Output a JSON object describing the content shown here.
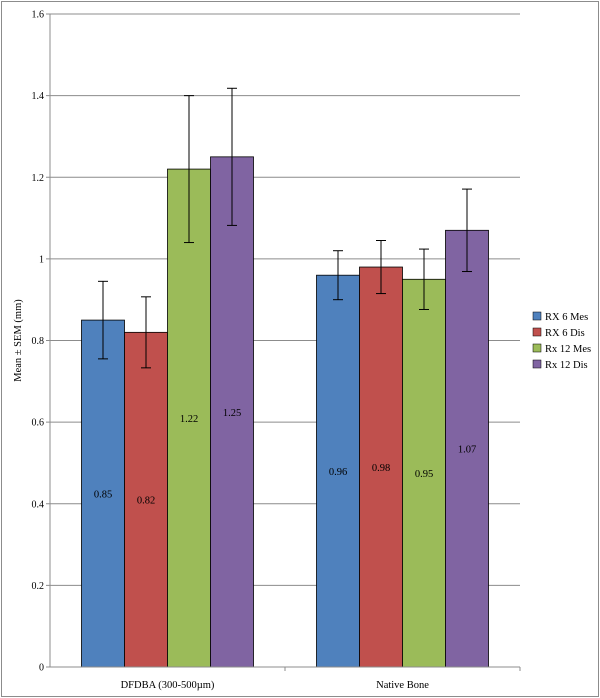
{
  "chart_data": {
    "type": "bar",
    "title": "",
    "xlabel": "",
    "ylabel": "Mean ± SEM (mm)",
    "ylim": [
      0,
      1.6
    ],
    "yticks": [
      0,
      0.2,
      0.4,
      0.6,
      0.8,
      1,
      1.2,
      1.4,
      1.6
    ],
    "grid": true,
    "legend_position": "right",
    "categories": [
      "DFDBA (300-500µm)",
      "Native Bone"
    ],
    "series": [
      {
        "name": "RX 6 Mes",
        "color": "#4f81bd",
        "values": [
          0.85,
          0.96
        ],
        "errors": [
          0.095,
          0.06
        ]
      },
      {
        "name": "RX 6 Dis",
        "color": "#c0504d",
        "values": [
          0.82,
          0.98
        ],
        "errors": [
          0.087,
          0.065
        ]
      },
      {
        "name": "Rx 12 Mes",
        "color": "#9bbb59",
        "values": [
          1.22,
          0.95
        ],
        "errors": [
          0.18,
          0.074
        ]
      },
      {
        "name": "Rx 12 Dis",
        "color": "#8064a2",
        "values": [
          1.25,
          1.07
        ],
        "errors": [
          0.168,
          0.101
        ]
      }
    ]
  }
}
